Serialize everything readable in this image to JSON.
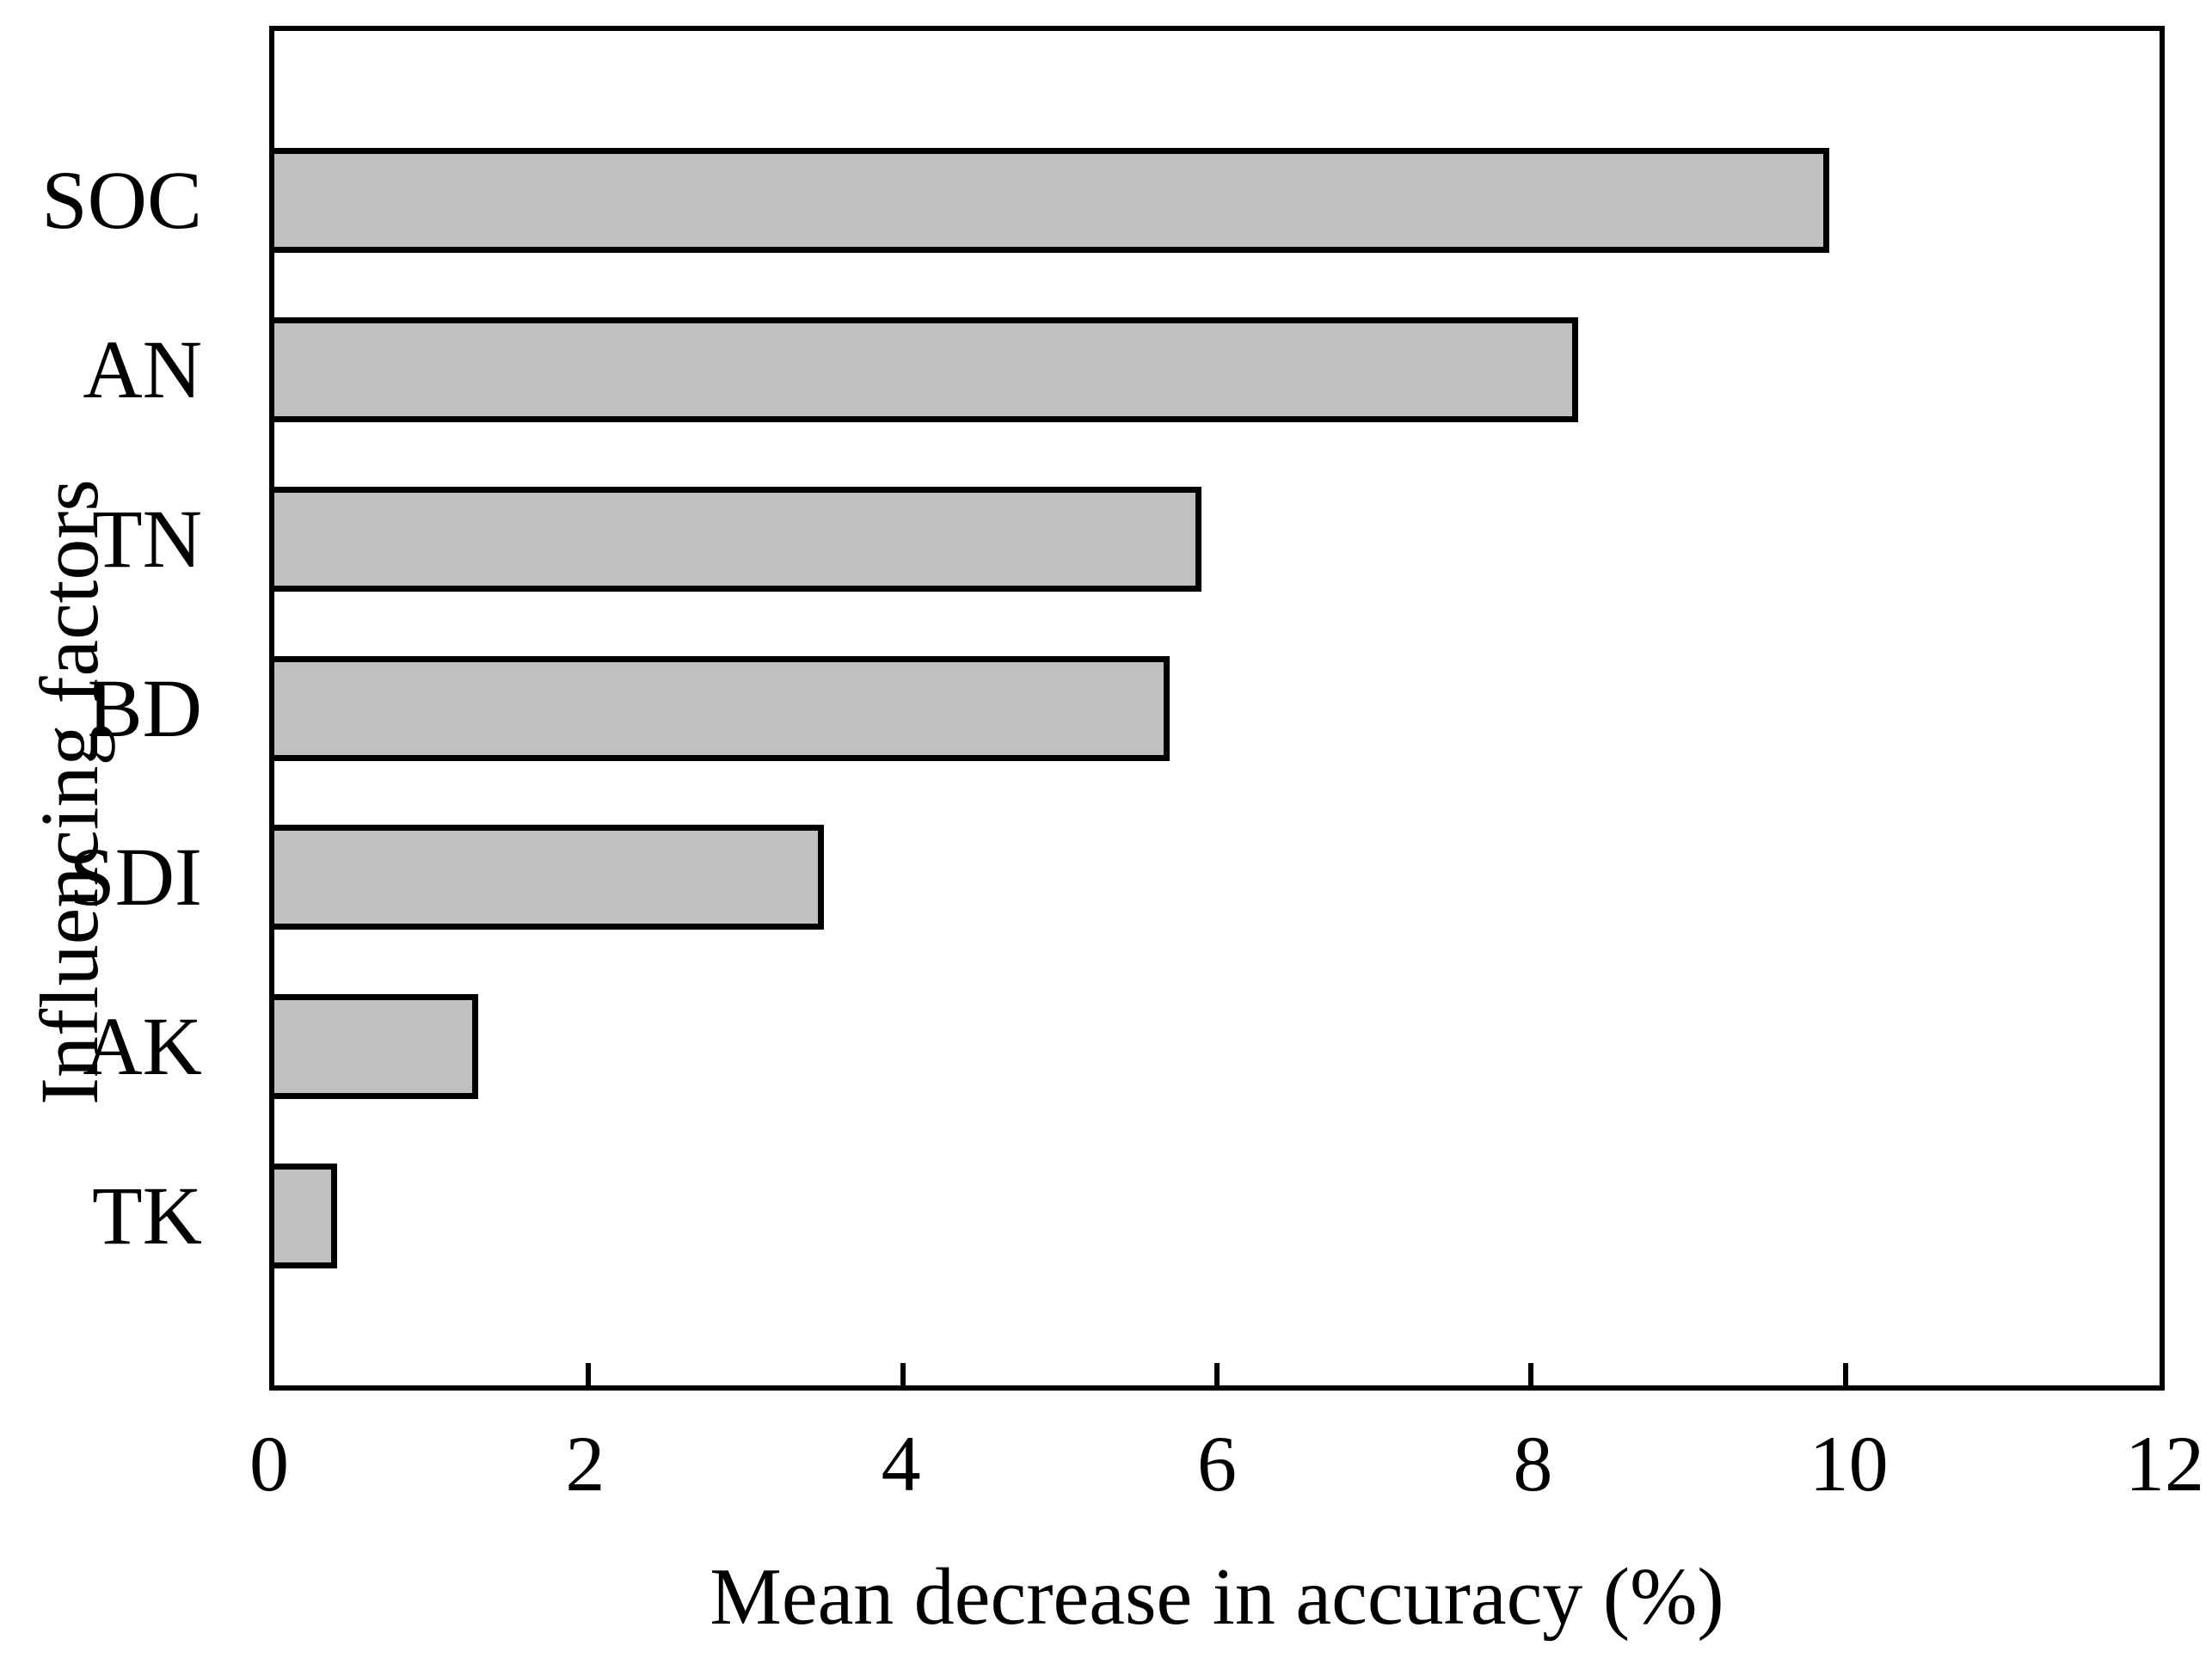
{
  "chart_data": {
    "type": "bar",
    "orientation": "horizontal",
    "title": "",
    "xlabel": "Mean decrease in accuracy (%)",
    "ylabel": "Influencing factors",
    "categories": [
      "SOC",
      "AN",
      "TN",
      "BD",
      "SDI",
      "AK",
      "TK"
    ],
    "values": [
      9.9,
      8.3,
      5.9,
      5.7,
      3.5,
      1.3,
      0.4
    ],
    "xlim": [
      0,
      12
    ],
    "xticks": [
      0,
      2,
      4,
      6,
      8,
      10,
      12
    ],
    "grid": false,
    "legend": false,
    "bar_color": "#c0c0c0",
    "bar_border_color": "#000000",
    "axis_color": "#000000",
    "background_color": "#ffffff"
  }
}
